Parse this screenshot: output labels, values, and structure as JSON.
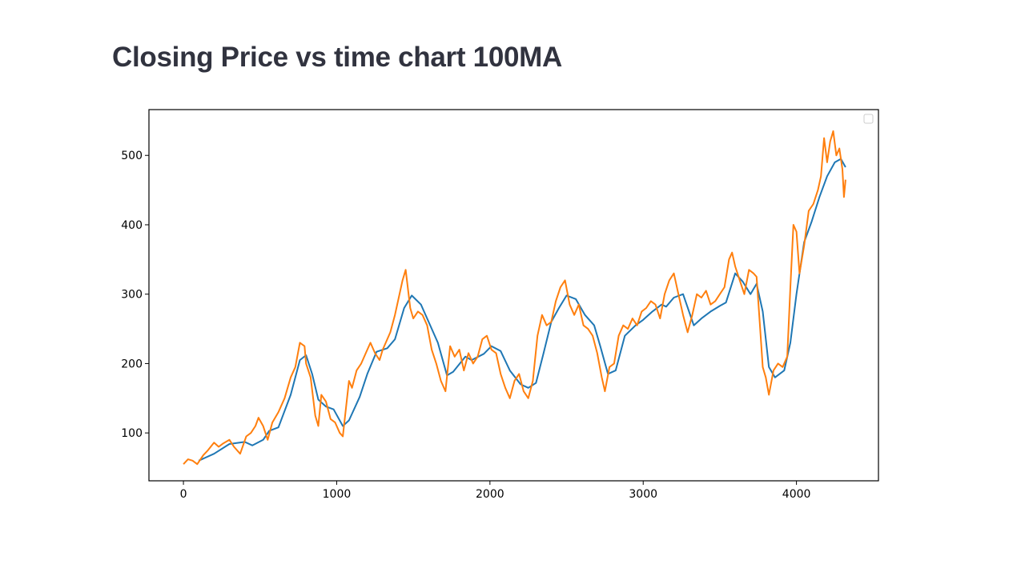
{
  "page": {
    "title": "Closing Price vs time chart 100MA"
  },
  "colors": {
    "ma_line": "#1f77b4",
    "close_line": "#ff7f0e",
    "axis": "#000000",
    "title": "#31333f"
  },
  "chart_data": {
    "type": "line",
    "title": "",
    "xlabel": "",
    "ylabel": "",
    "xlim": [
      -225,
      4535
    ],
    "ylim": [
      31,
      566
    ],
    "xticks": [
      0,
      1000,
      2000,
      3000,
      4000
    ],
    "yticks": [
      100,
      200,
      300,
      400,
      500
    ],
    "grid": false,
    "legend": {
      "placement": "top-right",
      "entries": []
    },
    "series": [
      {
        "color": "#1f77b4",
        "points": [
          [
            100,
            60
          ],
          [
            200,
            70
          ],
          [
            300,
            84
          ],
          [
            400,
            87
          ],
          [
            450,
            82
          ],
          [
            520,
            90
          ],
          [
            560,
            103
          ],
          [
            620,
            108
          ],
          [
            700,
            155
          ],
          [
            760,
            205
          ],
          [
            800,
            212
          ],
          [
            840,
            185
          ],
          [
            880,
            148
          ],
          [
            930,
            138
          ],
          [
            980,
            134
          ],
          [
            1040,
            110
          ],
          [
            1080,
            118
          ],
          [
            1150,
            152
          ],
          [
            1200,
            185
          ],
          [
            1260,
            217
          ],
          [
            1330,
            222
          ],
          [
            1380,
            235
          ],
          [
            1440,
            280
          ],
          [
            1490,
            298
          ],
          [
            1550,
            285
          ],
          [
            1600,
            260
          ],
          [
            1660,
            230
          ],
          [
            1720,
            183
          ],
          [
            1760,
            188
          ],
          [
            1840,
            210
          ],
          [
            1880,
            205
          ],
          [
            1960,
            214
          ],
          [
            2010,
            225
          ],
          [
            2070,
            218
          ],
          [
            2130,
            190
          ],
          [
            2200,
            170
          ],
          [
            2250,
            165
          ],
          [
            2300,
            172
          ],
          [
            2350,
            215
          ],
          [
            2400,
            260
          ],
          [
            2450,
            280
          ],
          [
            2500,
            298
          ],
          [
            2560,
            293
          ],
          [
            2620,
            270
          ],
          [
            2680,
            255
          ],
          [
            2720,
            225
          ],
          [
            2770,
            185
          ],
          [
            2820,
            190
          ],
          [
            2880,
            240
          ],
          [
            2950,
            255
          ],
          [
            3000,
            263
          ],
          [
            3060,
            275
          ],
          [
            3120,
            285
          ],
          [
            3150,
            282
          ],
          [
            3200,
            295
          ],
          [
            3260,
            300
          ],
          [
            3330,
            255
          ],
          [
            3380,
            265
          ],
          [
            3440,
            275
          ],
          [
            3500,
            283
          ],
          [
            3540,
            288
          ],
          [
            3600,
            330
          ],
          [
            3650,
            318
          ],
          [
            3700,
            300
          ],
          [
            3740,
            315
          ],
          [
            3780,
            275
          ],
          [
            3820,
            195
          ],
          [
            3860,
            180
          ],
          [
            3920,
            190
          ],
          [
            3960,
            230
          ],
          [
            4000,
            300
          ],
          [
            4050,
            375
          ],
          [
            4100,
            405
          ],
          [
            4150,
            440
          ],
          [
            4200,
            470
          ],
          [
            4250,
            490
          ],
          [
            4290,
            495
          ],
          [
            4320,
            483
          ]
        ]
      },
      {
        "color": "#ff7f0e",
        "points": [
          [
            0,
            55
          ],
          [
            30,
            62
          ],
          [
            60,
            60
          ],
          [
            90,
            55
          ],
          [
            130,
            68
          ],
          [
            160,
            75
          ],
          [
            200,
            86
          ],
          [
            230,
            80
          ],
          [
            260,
            85
          ],
          [
            300,
            90
          ],
          [
            330,
            80
          ],
          [
            370,
            70
          ],
          [
            410,
            95
          ],
          [
            440,
            100
          ],
          [
            470,
            110
          ],
          [
            490,
            122
          ],
          [
            520,
            110
          ],
          [
            550,
            90
          ],
          [
            580,
            115
          ],
          [
            620,
            130
          ],
          [
            660,
            150
          ],
          [
            700,
            180
          ],
          [
            730,
            195
          ],
          [
            760,
            230
          ],
          [
            790,
            225
          ],
          [
            800,
            200
          ],
          [
            830,
            180
          ],
          [
            860,
            125
          ],
          [
            880,
            110
          ],
          [
            900,
            155
          ],
          [
            930,
            145
          ],
          [
            960,
            120
          ],
          [
            990,
            115
          ],
          [
            1020,
            100
          ],
          [
            1040,
            95
          ],
          [
            1080,
            175
          ],
          [
            1100,
            165
          ],
          [
            1130,
            190
          ],
          [
            1160,
            200
          ],
          [
            1190,
            215
          ],
          [
            1220,
            230
          ],
          [
            1250,
            215
          ],
          [
            1280,
            205
          ],
          [
            1300,
            220
          ],
          [
            1350,
            245
          ],
          [
            1380,
            270
          ],
          [
            1410,
            300
          ],
          [
            1430,
            320
          ],
          [
            1450,
            335
          ],
          [
            1480,
            280
          ],
          [
            1500,
            265
          ],
          [
            1530,
            275
          ],
          [
            1560,
            270
          ],
          [
            1590,
            255
          ],
          [
            1620,
            220
          ],
          [
            1650,
            200
          ],
          [
            1680,
            175
          ],
          [
            1710,
            160
          ],
          [
            1740,
            225
          ],
          [
            1770,
            210
          ],
          [
            1800,
            220
          ],
          [
            1830,
            190
          ],
          [
            1860,
            215
          ],
          [
            1890,
            200
          ],
          [
            1920,
            210
          ],
          [
            1950,
            235
          ],
          [
            1980,
            240
          ],
          [
            2010,
            220
          ],
          [
            2040,
            215
          ],
          [
            2070,
            185
          ],
          [
            2100,
            165
          ],
          [
            2130,
            150
          ],
          [
            2160,
            175
          ],
          [
            2190,
            185
          ],
          [
            2220,
            160
          ],
          [
            2250,
            150
          ],
          [
            2280,
            175
          ],
          [
            2310,
            240
          ],
          [
            2340,
            270
          ],
          [
            2370,
            255
          ],
          [
            2400,
            260
          ],
          [
            2430,
            290
          ],
          [
            2460,
            310
          ],
          [
            2490,
            320
          ],
          [
            2520,
            285
          ],
          [
            2550,
            270
          ],
          [
            2580,
            285
          ],
          [
            2610,
            255
          ],
          [
            2640,
            250
          ],
          [
            2670,
            240
          ],
          [
            2700,
            215
          ],
          [
            2730,
            180
          ],
          [
            2750,
            160
          ],
          [
            2780,
            195
          ],
          [
            2810,
            200
          ],
          [
            2840,
            240
          ],
          [
            2870,
            255
          ],
          [
            2900,
            250
          ],
          [
            2930,
            265
          ],
          [
            2960,
            255
          ],
          [
            2990,
            275
          ],
          [
            3020,
            280
          ],
          [
            3050,
            290
          ],
          [
            3080,
            285
          ],
          [
            3110,
            265
          ],
          [
            3140,
            300
          ],
          [
            3170,
            320
          ],
          [
            3200,
            330
          ],
          [
            3230,
            300
          ],
          [
            3260,
            270
          ],
          [
            3290,
            245
          ],
          [
            3320,
            270
          ],
          [
            3350,
            300
          ],
          [
            3380,
            295
          ],
          [
            3410,
            305
          ],
          [
            3440,
            285
          ],
          [
            3470,
            290
          ],
          [
            3500,
            300
          ],
          [
            3530,
            310
          ],
          [
            3560,
            350
          ],
          [
            3580,
            360
          ],
          [
            3600,
            340
          ],
          [
            3630,
            320
          ],
          [
            3660,
            300
          ],
          [
            3690,
            335
          ],
          [
            3720,
            330
          ],
          [
            3740,
            325
          ],
          [
            3760,
            260
          ],
          [
            3780,
            195
          ],
          [
            3800,
            180
          ],
          [
            3820,
            155
          ],
          [
            3850,
            190
          ],
          [
            3880,
            200
          ],
          [
            3910,
            195
          ],
          [
            3940,
            210
          ],
          [
            3960,
            310
          ],
          [
            3980,
            400
          ],
          [
            4000,
            390
          ],
          [
            4020,
            330
          ],
          [
            4050,
            370
          ],
          [
            4080,
            420
          ],
          [
            4110,
            430
          ],
          [
            4140,
            450
          ],
          [
            4160,
            470
          ],
          [
            4180,
            525
          ],
          [
            4200,
            490
          ],
          [
            4220,
            520
          ],
          [
            4240,
            535
          ],
          [
            4260,
            500
          ],
          [
            4280,
            510
          ],
          [
            4300,
            480
          ],
          [
            4310,
            440
          ],
          [
            4320,
            465
          ]
        ]
      }
    ]
  }
}
